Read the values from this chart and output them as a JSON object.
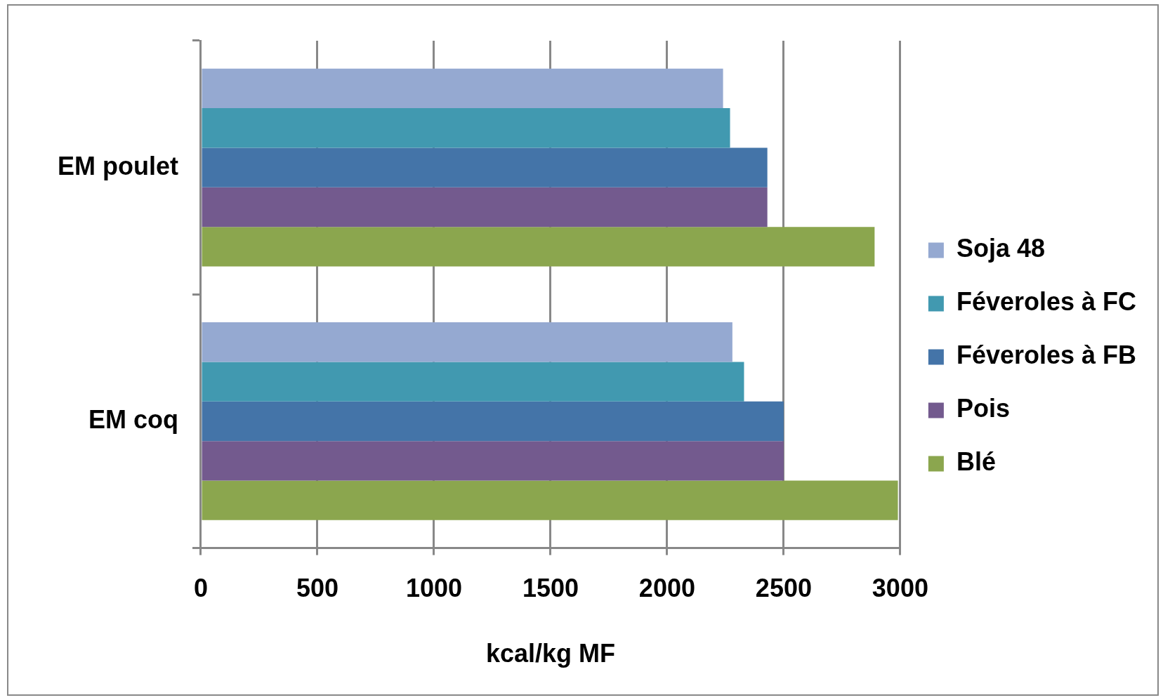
{
  "chart_data": {
    "type": "bar",
    "orientation": "horizontal",
    "xlabel": "kcal/kg MF",
    "categories": [
      "EM poulet",
      "EM coq"
    ],
    "series": [
      {
        "name": "Soja 48",
        "color": "#95a9d1",
        "values": [
          2240,
          2280
        ]
      },
      {
        "name": "Féveroles à FC",
        "color": "#4199b0",
        "values": [
          2270,
          2330
        ]
      },
      {
        "name": "Féveroles à FB",
        "color": "#4474a8",
        "values": [
          2430,
          2500
        ]
      },
      {
        "name": "Pois",
        "color": "#735a8e",
        "values": [
          2430,
          2500
        ]
      },
      {
        "name": "Blé",
        "color": "#8ba64e",
        "values": [
          2890,
          2990
        ]
      }
    ],
    "xlim": [
      0,
      3000
    ],
    "xticks": [
      0,
      500,
      1000,
      1500,
      2000,
      2500,
      3000
    ],
    "grid": "x",
    "legend": "right"
  }
}
